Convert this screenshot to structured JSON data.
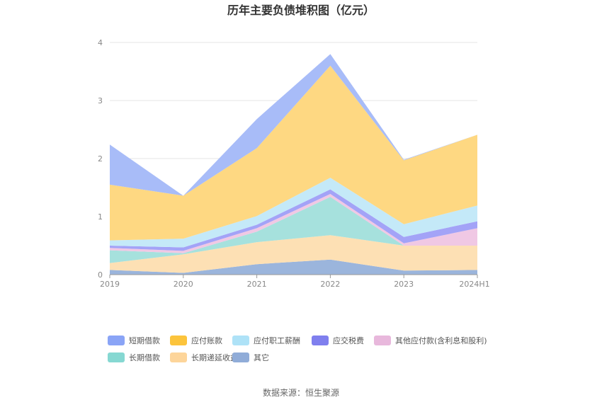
{
  "chart_data": {
    "type": "area",
    "stacked": true,
    "title": "历年主要负债堆积图（亿元）",
    "categories": [
      "2019",
      "2020",
      "2021",
      "2022",
      "2023",
      "2024H1"
    ],
    "ylim": [
      0,
      4
    ],
    "yticks": [
      "0",
      "1",
      "2",
      "3",
      "4"
    ],
    "grid": true,
    "legend_position": "bottom",
    "series": [
      {
        "name": "其它",
        "color": "#9bb5dc",
        "values": [
          0.08,
          0.03,
          0.18,
          0.26,
          0.07,
          0.08
        ]
      },
      {
        "name": "长期递延收益",
        "color": "#fde0b4",
        "values": [
          0.12,
          0.32,
          0.38,
          0.42,
          0.43,
          0.42
        ]
      },
      {
        "name": "长期借款",
        "color": "#a6e1dd",
        "values": [
          0.22,
          0.02,
          0.18,
          0.66,
          0.0,
          0.0
        ]
      },
      {
        "name": "其他应付款(含利息和股利)",
        "color": "#f0c8e4",
        "values": [
          0.04,
          0.04,
          0.06,
          0.05,
          0.04,
          0.3
        ]
      },
      {
        "name": "应交税费",
        "color": "#a3a3f7",
        "values": [
          0.04,
          0.06,
          0.06,
          0.08,
          0.11,
          0.12
        ]
      },
      {
        "name": "应付职工薪酬",
        "color": "#c4e9f8",
        "values": [
          0.09,
          0.15,
          0.15,
          0.2,
          0.22,
          0.27
        ]
      },
      {
        "name": "应付账款",
        "color": "#fed882",
        "values": [
          0.96,
          0.74,
          1.17,
          1.93,
          1.1,
          1.22
        ]
      },
      {
        "name": "短期借款",
        "color": "#a8bcf8",
        "values": [
          0.69,
          0.0,
          0.5,
          0.2,
          0.01,
          0.0
        ]
      }
    ],
    "legend": [
      {
        "name": "短期借款",
        "color": "#8aa4f6"
      },
      {
        "name": "应付账款",
        "color": "#fcc43c"
      },
      {
        "name": "应付职工薪酬",
        "color": "#aee2f7"
      },
      {
        "name": "应交税费",
        "color": "#7f7fee"
      },
      {
        "name": "其他应付款(含利息和股利)",
        "color": "#e8b8dc"
      },
      {
        "name": "长期借款",
        "color": "#86d8d2"
      },
      {
        "name": "长期递延收益",
        "color": "#fdd59a"
      },
      {
        "name": "其它",
        "color": "#90acd8"
      }
    ]
  },
  "source": "数据来源：恒生聚源"
}
